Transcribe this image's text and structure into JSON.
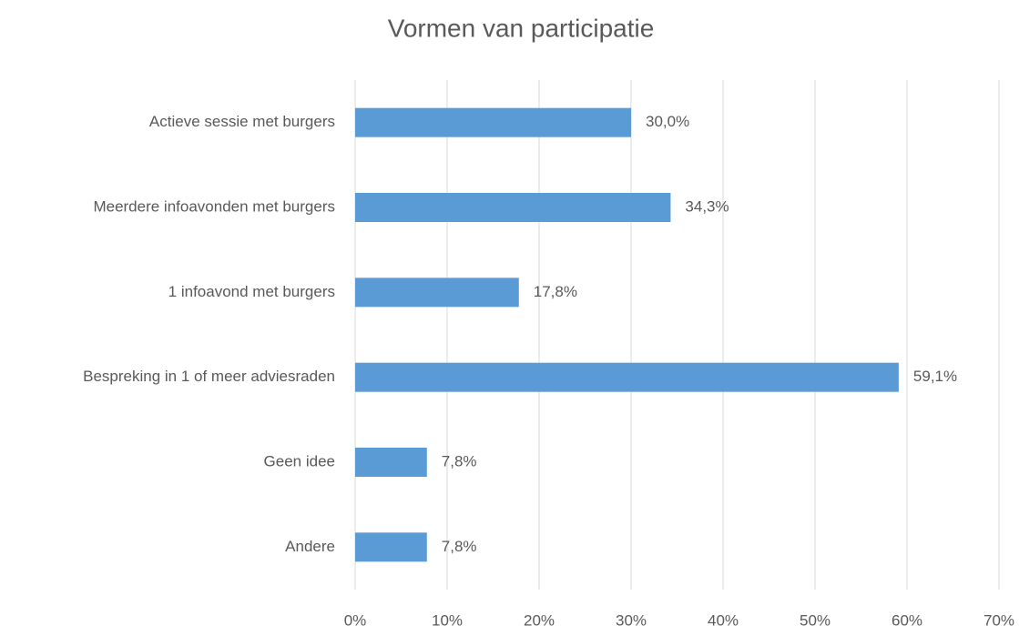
{
  "chart_data": {
    "type": "bar",
    "title": "Vormen van participatie",
    "categories": [
      "Actieve sessie met burgers",
      "Meerdere infoavonden met burgers",
      "1 infoavond met burgers",
      "Bespreking in 1 of meer adviesraden",
      "Geen idee",
      "Andere"
    ],
    "values": [
      30.0,
      34.3,
      17.8,
      59.1,
      7.8,
      7.8
    ],
    "value_labels": [
      "30,0%",
      "34,3%",
      "17,8%",
      "59,1%",
      "7,8%",
      "7,8%"
    ],
    "color": "#5b9bd5",
    "xlim": [
      0,
      70
    ],
    "xticks": [
      {
        "value": 0,
        "label": "0%"
      },
      {
        "value": 10,
        "label": "10%"
      },
      {
        "value": 20,
        "label": "20%"
      },
      {
        "value": 30,
        "label": "30%"
      },
      {
        "value": 40,
        "label": "40%"
      },
      {
        "value": 50,
        "label": "50%"
      },
      {
        "value": 60,
        "label": "60%"
      },
      {
        "value": 70,
        "label": "70%"
      }
    ],
    "grid": true
  }
}
